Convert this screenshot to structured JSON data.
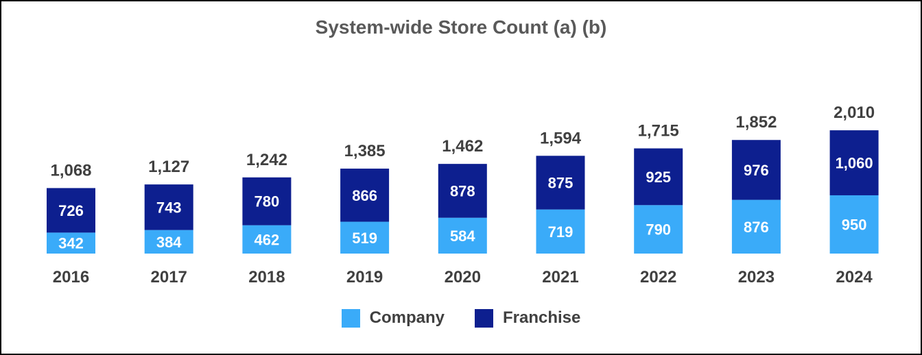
{
  "colors": {
    "company": "#3aabf9",
    "franchise": "#0d1f8f",
    "text": "#404040",
    "title": "#595959"
  },
  "chart_data": {
    "type": "bar",
    "stacked": true,
    "title": "System-wide Store Count (a) (b)",
    "categories": [
      "2016",
      "2017",
      "2018",
      "2019",
      "2020",
      "2021",
      "2022",
      "2023",
      "2024"
    ],
    "series": [
      {
        "name": "Company",
        "values": [
          342,
          384,
          462,
          519,
          584,
          719,
          790,
          876,
          950
        ],
        "labels": [
          "342",
          "384",
          "462",
          "519",
          "584",
          "719",
          "790",
          "876",
          "950"
        ]
      },
      {
        "name": "Franchise",
        "values": [
          726,
          743,
          780,
          866,
          878,
          875,
          925,
          976,
          1060
        ],
        "labels": [
          "726",
          "743",
          "780",
          "866",
          "878",
          "875",
          "925",
          "976",
          "1,060"
        ]
      }
    ],
    "totals": [
      1068,
      1127,
      1242,
      1385,
      1462,
      1594,
      1715,
      1852,
      2010
    ],
    "total_labels": [
      "1,068",
      "1,127",
      "1,242",
      "1,385",
      "1,462",
      "1,594",
      "1,715",
      "1,852",
      "2,010"
    ],
    "legend_position": "bottom",
    "grid": false
  }
}
